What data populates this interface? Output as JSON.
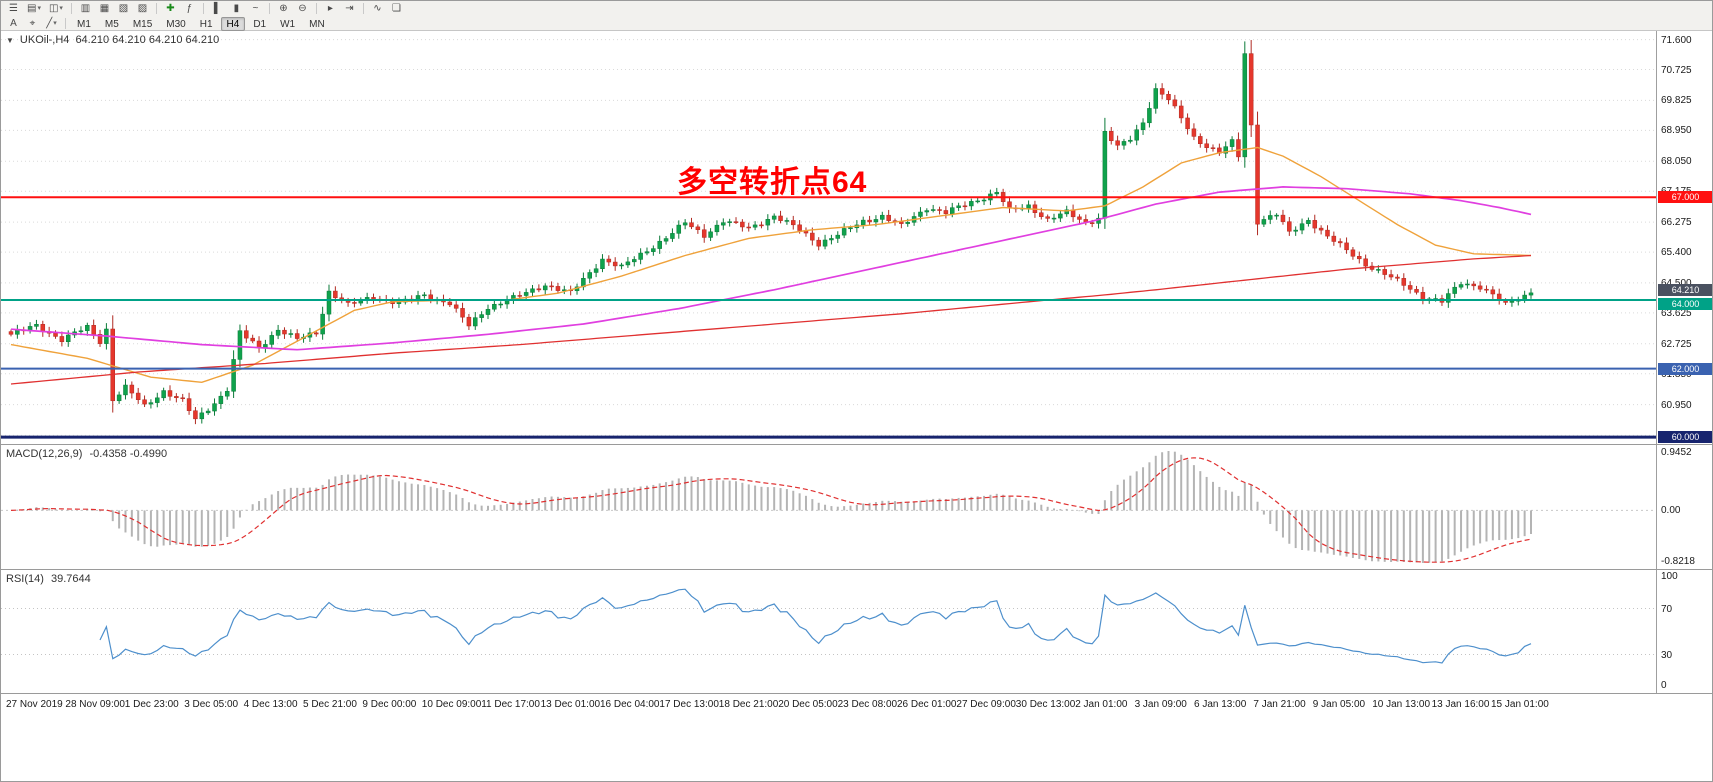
{
  "toolbar": {
    "row1": [
      {
        "name": "menu",
        "glyph": "☰"
      },
      {
        "name": "new-chart",
        "glyph": "▤",
        "dropdown": true
      },
      {
        "name": "profiles",
        "glyph": "◫",
        "dropdown": true
      },
      {
        "sep": true
      },
      {
        "name": "market-watch",
        "glyph": "▥"
      },
      {
        "name": "data-window",
        "glyph": "▦"
      },
      {
        "name": "navigator",
        "glyph": "▧"
      },
      {
        "name": "terminal",
        "glyph": "▨"
      },
      {
        "sep": true
      },
      {
        "name": "new-order",
        "glyph": "✚",
        "color": "#1a8a1a"
      },
      {
        "name": "expert-advisors",
        "glyph": "ƒ"
      },
      {
        "sep": true
      },
      {
        "name": "chart-bars",
        "glyph": "▌"
      },
      {
        "name": "chart-candles",
        "glyph": "▮"
      },
      {
        "name": "chart-line",
        "glyph": "~"
      },
      {
        "sep": true
      },
      {
        "name": "zoom-in",
        "glyph": "⊕"
      },
      {
        "name": "zoom-out",
        "glyph": "⊖"
      },
      {
        "sep": true
      },
      {
        "name": "auto-scroll",
        "glyph": "▸"
      },
      {
        "name": "chart-shift",
        "glyph": "⇥"
      },
      {
        "sep": true
      },
      {
        "name": "indicators",
        "glyph": "∿"
      },
      {
        "name": "tile-windows",
        "glyph": "❏"
      }
    ],
    "row2_tools": [
      {
        "name": "text-label-tool",
        "glyph": "A"
      },
      {
        "name": "crosshair-tool",
        "glyph": "⌖"
      },
      {
        "name": "shapes-tool",
        "glyph": "╱",
        "dropdown": true
      }
    ],
    "timeframes": [
      {
        "label": "M1"
      },
      {
        "label": "M5"
      },
      {
        "label": "M15"
      },
      {
        "label": "M30"
      },
      {
        "label": "H1"
      },
      {
        "label": "H4",
        "active": true
      },
      {
        "label": "D1"
      },
      {
        "label": "W1"
      },
      {
        "label": "MN"
      }
    ]
  },
  "chart": {
    "symbol_label": "UKOil-,H4",
    "ohlc_label": "64.210 64.210 64.210 64.210",
    "annotation": {
      "text": "多空转折点64",
      "color": "#FF0000"
    },
    "current_price": "64.210",
    "price_axis_ticks": [
      "71.600",
      "70.725",
      "69.825",
      "68.950",
      "68.050",
      "67.175",
      "66.275",
      "65.400",
      "64.500",
      "63.625",
      "62.725",
      "61.850",
      "60.950",
      "60.050"
    ],
    "horizontal_lines": [
      {
        "price": 67.0,
        "label": "67.000",
        "color": "#FF1010",
        "width": 2
      },
      {
        "price": 64.0,
        "label": "64.000",
        "color": "#00A287",
        "width": 2
      },
      {
        "price": 62.0,
        "label": "62.000",
        "color": "#3A62B0",
        "width": 2
      },
      {
        "price": 60.0,
        "label": "60.000",
        "color": "#17246E",
        "width": 3
      }
    ],
    "time_axis": [
      "27 Nov 2019",
      "28 Nov 09:00",
      "1 Dec 23:00",
      "3 Dec 05:00",
      "4 Dec 13:00",
      "5 Dec 21:00",
      "9 Dec 00:00",
      "10 Dec 09:00",
      "11 Dec 17:00",
      "13 Dec 01:00",
      "16 Dec 04:00",
      "17 Dec 13:00",
      "18 Dec 21:00",
      "20 Dec 05:00",
      "23 Dec 08:00",
      "26 Dec 01:00",
      "27 Dec 09:00",
      "30 Dec 13:00",
      "2 Jan 01:00",
      "3 Jan 09:00",
      "6 Jan 13:00",
      "7 Jan 21:00",
      "9 Jan 05:00",
      "10 Jan 13:00",
      "13 Jan 16:00",
      "15 Jan 01:00"
    ],
    "chart_data": {
      "type": "candlestick",
      "symbol": "UKOil-",
      "timeframe": "H4",
      "bars": 240,
      "price_range": [
        59.8,
        71.85
      ],
      "last_close": 64.21,
      "close_anchors": [
        [
          0,
          63.0
        ],
        [
          4,
          63.25
        ],
        [
          8,
          62.85
        ],
        [
          12,
          63.2
        ],
        [
          14,
          62.8
        ],
        [
          15,
          63.15
        ],
        [
          16,
          61.1
        ],
        [
          18,
          61.45
        ],
        [
          21,
          60.9
        ],
        [
          24,
          61.35
        ],
        [
          27,
          61.05
        ],
        [
          29,
          60.5
        ],
        [
          32,
          61.0
        ],
        [
          34,
          61.4
        ],
        [
          36,
          63.05
        ],
        [
          39,
          62.6
        ],
        [
          42,
          63.15
        ],
        [
          45,
          62.85
        ],
        [
          48,
          63.05
        ],
        [
          50,
          64.25
        ],
        [
          53,
          63.85
        ],
        [
          57,
          64.1
        ],
        [
          61,
          63.9
        ],
        [
          65,
          64.15
        ],
        [
          69,
          63.9
        ],
        [
          72,
          63.25
        ],
        [
          75,
          63.8
        ],
        [
          79,
          64.05
        ],
        [
          84,
          64.45
        ],
        [
          88,
          64.2
        ],
        [
          93,
          65.2
        ],
        [
          96,
          64.95
        ],
        [
          100,
          65.45
        ],
        [
          104,
          65.95
        ],
        [
          106,
          66.25
        ],
        [
          109,
          65.9
        ],
        [
          112,
          66.3
        ],
        [
          116,
          66.1
        ],
        [
          120,
          66.45
        ],
        [
          124,
          66.05
        ],
        [
          127,
          65.65
        ],
        [
          130,
          65.9
        ],
        [
          134,
          66.3
        ],
        [
          137,
          66.45
        ],
        [
          140,
          66.15
        ],
        [
          144,
          66.7
        ],
        [
          147,
          66.55
        ],
        [
          151,
          66.85
        ],
        [
          155,
          67.15
        ],
        [
          157,
          66.6
        ],
        [
          160,
          66.75
        ],
        [
          163,
          66.35
        ],
        [
          166,
          66.55
        ],
        [
          169,
          66.25
        ],
        [
          171,
          66.4
        ],
        [
          172,
          68.9
        ],
        [
          174,
          68.45
        ],
        [
          176,
          68.7
        ],
        [
          178,
          69.2
        ],
        [
          180,
          70.15
        ],
        [
          182,
          69.85
        ],
        [
          184,
          69.3
        ],
        [
          186,
          68.75
        ],
        [
          188,
          68.5
        ],
        [
          190,
          68.3
        ],
        [
          192,
          68.6
        ],
        [
          193,
          68.2
        ],
        [
          194,
          71.2
        ],
        [
          195,
          69.1
        ],
        [
          196,
          66.3
        ],
        [
          199,
          66.5
        ],
        [
          201,
          65.95
        ],
        [
          204,
          66.35
        ],
        [
          207,
          65.85
        ],
        [
          210,
          65.45
        ],
        [
          213,
          65.05
        ],
        [
          216,
          64.75
        ],
        [
          219,
          64.45
        ],
        [
          222,
          64.1
        ],
        [
          225,
          63.95
        ],
        [
          228,
          64.5
        ],
        [
          231,
          64.4
        ],
        [
          233,
          64.15
        ],
        [
          235,
          63.85
        ],
        [
          237,
          64.05
        ],
        [
          239,
          64.21
        ]
      ],
      "moving_averages": [
        {
          "name": "ma-medium-orange",
          "color": "#EFA23B",
          "width": 1.4,
          "anchors": [
            [
              0,
              62.7
            ],
            [
              12,
              62.3
            ],
            [
              22,
              61.75
            ],
            [
              30,
              61.6
            ],
            [
              38,
              62.1
            ],
            [
              46,
              62.9
            ],
            [
              54,
              63.7
            ],
            [
              60,
              63.95
            ],
            [
              70,
              64.0
            ],
            [
              78,
              64.0
            ],
            [
              86,
              64.2
            ],
            [
              96,
              64.7
            ],
            [
              106,
              65.3
            ],
            [
              116,
              65.8
            ],
            [
              126,
              66.05
            ],
            [
              136,
              66.2
            ],
            [
              146,
              66.45
            ],
            [
              156,
              66.7
            ],
            [
              166,
              66.6
            ],
            [
              172,
              66.75
            ],
            [
              178,
              67.3
            ],
            [
              184,
              68.0
            ],
            [
              190,
              68.3
            ],
            [
              196,
              68.45
            ],
            [
              200,
              68.2
            ],
            [
              206,
              67.6
            ],
            [
              212,
              66.9
            ],
            [
              218,
              66.2
            ],
            [
              224,
              65.6
            ],
            [
              230,
              65.35
            ],
            [
              239,
              65.3
            ]
          ]
        },
        {
          "name": "ma-slow-magenta",
          "color": "#E03FE0",
          "width": 1.7,
          "anchors": [
            [
              0,
              63.15
            ],
            [
              15,
              62.95
            ],
            [
              30,
              62.7
            ],
            [
              45,
              62.55
            ],
            [
              60,
              62.75
            ],
            [
              75,
              63.0
            ],
            [
              90,
              63.3
            ],
            [
              105,
              63.75
            ],
            [
              120,
              64.3
            ],
            [
              135,
              64.9
            ],
            [
              150,
              65.5
            ],
            [
              160,
              65.9
            ],
            [
              170,
              66.3
            ],
            [
              180,
              66.8
            ],
            [
              190,
              67.15
            ],
            [
              200,
              67.3
            ],
            [
              210,
              67.25
            ],
            [
              220,
              67.1
            ],
            [
              228,
              66.9
            ],
            [
              234,
              66.7
            ],
            [
              239,
              66.5
            ]
          ]
        },
        {
          "name": "ma-long-red",
          "color": "#E03030",
          "width": 1.3,
          "anchors": [
            [
              0,
              61.55
            ],
            [
              20,
              61.9
            ],
            [
              40,
              62.15
            ],
            [
              60,
              62.45
            ],
            [
              80,
              62.7
            ],
            [
              100,
              63.0
            ],
            [
              120,
              63.3
            ],
            [
              140,
              63.6
            ],
            [
              160,
              63.95
            ],
            [
              172,
              64.15
            ],
            [
              180,
              64.3
            ],
            [
              190,
              64.5
            ],
            [
              200,
              64.7
            ],
            [
              210,
              64.9
            ],
            [
              220,
              65.05
            ],
            [
              230,
              65.2
            ],
            [
              239,
              65.3
            ]
          ]
        }
      ]
    }
  },
  "macd": {
    "label": "MACD(12,26,9)",
    "values": "-0.4358 -0.4990",
    "axis_max": "0.9452",
    "axis_zero": "0.00",
    "axis_min": "-0.8218",
    "params": {
      "fast": 12,
      "slow": 26,
      "signal": 9
    }
  },
  "rsi": {
    "label": "RSI(14)",
    "value": "39.7644",
    "axis": [
      "100",
      "70",
      "30",
      "0"
    ],
    "levels": [
      70,
      30
    ],
    "period": 14
  }
}
